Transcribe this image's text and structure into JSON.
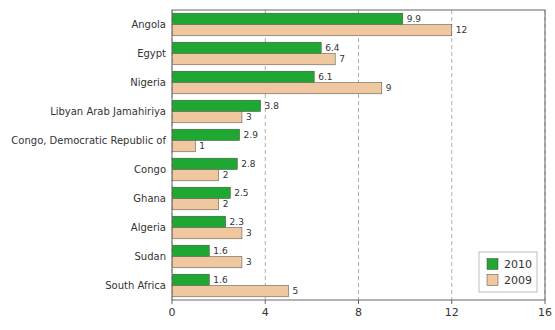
{
  "chart_data": {
    "type": "bar",
    "orientation": "horizontal",
    "categories": [
      "Angola",
      "Egypt",
      "Nigeria",
      "Libyan Arab Jamahiriya",
      "Congo, Democratic Republic of",
      "Congo",
      "Ghana",
      "Algeria",
      "Sudan",
      "South Africa"
    ],
    "series": [
      {
        "name": "2010",
        "color": "#1fa831",
        "values": [
          9.9,
          6.4,
          6.1,
          3.8,
          2.9,
          2.8,
          2.5,
          2.3,
          1.6,
          1.6
        ]
      },
      {
        "name": "2009",
        "color": "#f0c8a0",
        "values": [
          12,
          7,
          9,
          3,
          1,
          2,
          2,
          3,
          3,
          5
        ]
      }
    ],
    "xlim": [
      0,
      16
    ],
    "xticks": [
      0,
      4,
      8,
      12,
      16
    ],
    "grid": true,
    "data_labels": true,
    "legend": "lower right"
  }
}
